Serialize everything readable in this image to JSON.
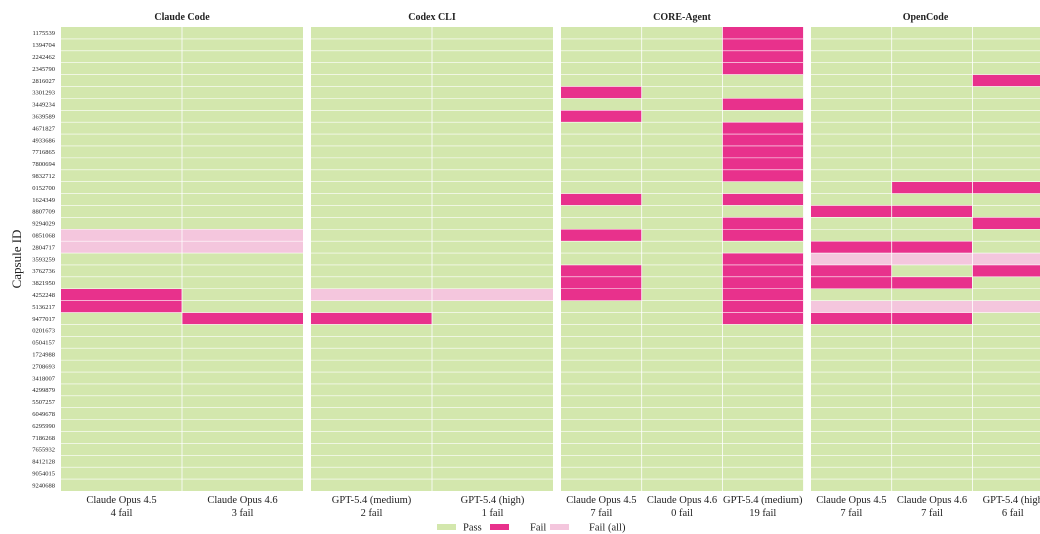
{
  "chart_data": {
    "type": "heatmap",
    "ylabel": "Capsule ID",
    "capsules": [
      "1175539",
      "1394704",
      "2242462",
      "2345790",
      "2816027",
      "3301293",
      "3449234",
      "3639589",
      "4671827",
      "4933686",
      "7716865",
      "7800694",
      "9832712",
      "0152700",
      "1624349",
      "8807709",
      "9294029",
      "0851068",
      "2804717",
      "3593259",
      "3762736",
      "3821950",
      "4252248",
      "5136217",
      "9477017",
      "0201673",
      "0504157",
      "1724988",
      "2708693",
      "3418007",
      "4299879",
      "5507257",
      "6049678",
      "6295990",
      "7186268",
      "7655932",
      "8412128",
      "9054015",
      "9240688"
    ],
    "legend": [
      {
        "key": "pass",
        "label": "Pass",
        "color": "#d3e7ad"
      },
      {
        "key": "fail",
        "label": "Fail",
        "color": "#e8318c"
      },
      {
        "key": "fail_all",
        "label": "Fail (all)",
        "color": "#f4c6dd"
      }
    ],
    "grid_color": "#ffffff",
    "panels": [
      {
        "title": "Claude Code",
        "columns": [
          {
            "name": "Claude Opus 4.5",
            "summary": "4 fail"
          },
          {
            "name": "Claude Opus 4.6",
            "summary": "3 fail"
          }
        ],
        "fail_all": [
          "0851068",
          "2804717"
        ],
        "fails": [
          [
            "0851068",
            "2804717",
            "4252248",
            "5136217"
          ],
          [
            "0851068",
            "2804717",
            "9477017"
          ]
        ]
      },
      {
        "title": "Codex CLI",
        "columns": [
          {
            "name": "GPT-5.4 (medium)",
            "summary": "2 fail"
          },
          {
            "name": "GPT-5.4 (high)",
            "summary": "1 fail"
          }
        ],
        "fail_all": [
          "4252248"
        ],
        "fails": [
          [
            "4252248",
            "9477017"
          ],
          [
            "4252248"
          ]
        ]
      },
      {
        "title": "CORE-Agent",
        "columns": [
          {
            "name": "Claude Opus 4.5",
            "summary": "7 fail"
          },
          {
            "name": "Claude Opus 4.6",
            "summary": "0 fail"
          },
          {
            "name": "GPT-5.4 (medium)",
            "summary": "19 fail"
          }
        ],
        "fail_all": [],
        "fails": [
          [
            "3301293",
            "3639589",
            "1624349",
            "0851068",
            "3762736",
            "3821950",
            "4252248"
          ],
          [],
          [
            "1175539",
            "1394704",
            "2242462",
            "2345790",
            "3449234",
            "4671827",
            "4933686",
            "7716865",
            "7800694",
            "9832712",
            "1624349",
            "9294029",
            "0851068",
            "3593259",
            "3762736",
            "3821950",
            "4252248",
            "5136217",
            "9477017"
          ]
        ]
      },
      {
        "title": "OpenCode",
        "columns": [
          {
            "name": "Claude Opus 4.5",
            "summary": "7 fail"
          },
          {
            "name": "Claude Opus 4.6",
            "summary": "7 fail"
          },
          {
            "name": "GPT-5.4 (high",
            "summary": "6 fail"
          }
        ],
        "fail_all": [
          "3593259",
          "5136217"
        ],
        "fails": [
          [
            "8807709",
            "2804717",
            "3593259",
            "3762736",
            "3821950",
            "5136217",
            "9477017"
          ],
          [
            "0152700",
            "8807709",
            "2804717",
            "3593259",
            "3821950",
            "5136217",
            "9477017"
          ],
          [
            "2816027",
            "0152700",
            "9294029",
            "3593259",
            "3762736",
            "5136217"
          ]
        ]
      }
    ]
  }
}
